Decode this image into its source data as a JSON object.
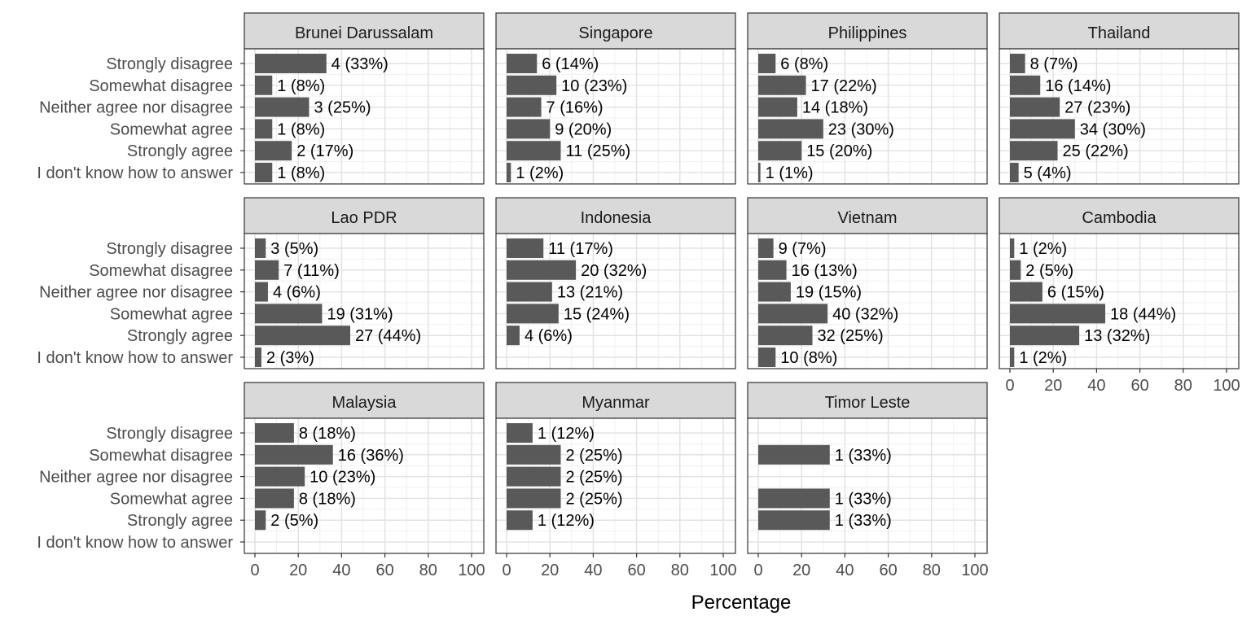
{
  "chart_data": {
    "type": "bar",
    "orientation": "horizontal",
    "xlabel": "Percentage",
    "ylabel": "",
    "xlim": [
      0,
      100
    ],
    "x_ticks": [
      0,
      20,
      40,
      60,
      80,
      100
    ],
    "grid": true,
    "bar_color": "#595959",
    "strip_color": "#d9d9d9",
    "categories": [
      "Strongly disagree",
      "Somewhat disagree",
      "Neither agree nor disagree",
      "Somewhat agree",
      "Strongly agree",
      "I don't know how to answer"
    ],
    "panels": [
      {
        "name": "Brunei Darussalam",
        "values": [
          33,
          8,
          25,
          8,
          17,
          8
        ],
        "labels": [
          "4 (33%)",
          "1 (8%)",
          "3 (25%)",
          "1 (8%)",
          "2 (17%)",
          "1 (8%)"
        ]
      },
      {
        "name": "Singapore",
        "values": [
          14,
          23,
          16,
          20,
          25,
          2
        ],
        "labels": [
          "6 (14%)",
          "10 (23%)",
          "7 (16%)",
          "9 (20%)",
          "11 (25%)",
          "1 (2%)"
        ]
      },
      {
        "name": "Philippines",
        "values": [
          8,
          22,
          18,
          30,
          20,
          1
        ],
        "labels": [
          "6 (8%)",
          "17 (22%)",
          "14 (18%)",
          "23 (30%)",
          "15 (20%)",
          "1 (1%)"
        ]
      },
      {
        "name": "Thailand",
        "values": [
          7,
          14,
          23,
          30,
          22,
          4
        ],
        "labels": [
          "8 (7%)",
          "16 (14%)",
          "27 (23%)",
          "34 (30%)",
          "25 (22%)",
          "5 (4%)"
        ]
      },
      {
        "name": "Lao PDR",
        "values": [
          5,
          11,
          6,
          31,
          44,
          3
        ],
        "labels": [
          "3 (5%)",
          "7 (11%)",
          "4 (6%)",
          "19 (31%)",
          "27 (44%)",
          "2 (3%)"
        ]
      },
      {
        "name": "Indonesia",
        "values": [
          17,
          32,
          21,
          24,
          6,
          null
        ],
        "labels": [
          "11 (17%)",
          "20 (32%)",
          "13 (21%)",
          "15 (24%)",
          "4 (6%)",
          null
        ]
      },
      {
        "name": "Vietnam",
        "values": [
          7,
          13,
          15,
          32,
          25,
          8
        ],
        "labels": [
          "9 (7%)",
          "16 (13%)",
          "19 (15%)",
          "40 (32%)",
          "32 (25%)",
          "10 (8%)"
        ]
      },
      {
        "name": "Cambodia",
        "values": [
          2,
          5,
          15,
          44,
          32,
          2
        ],
        "labels": [
          "1 (2%)",
          "2 (5%)",
          "6 (15%)",
          "18 (44%)",
          "13 (32%)",
          "1 (2%)"
        ]
      },
      {
        "name": "Malaysia",
        "values": [
          18,
          36,
          23,
          18,
          5,
          null
        ],
        "labels": [
          "8 (18%)",
          "16 (36%)",
          "10 (23%)",
          "8 (18%)",
          "2 (5%)",
          null
        ]
      },
      {
        "name": "Myanmar",
        "values": [
          12,
          25,
          25,
          25,
          12,
          null
        ],
        "labels": [
          "1 (12%)",
          "2 (25%)",
          "2 (25%)",
          "2 (25%)",
          "1 (12%)",
          null
        ]
      },
      {
        "name": "Timor Leste",
        "values": [
          null,
          33,
          null,
          33,
          33,
          null
        ],
        "labels": [
          null,
          "1 (33%)",
          null,
          "1 (33%)",
          "1 (33%)",
          null
        ]
      }
    ]
  }
}
